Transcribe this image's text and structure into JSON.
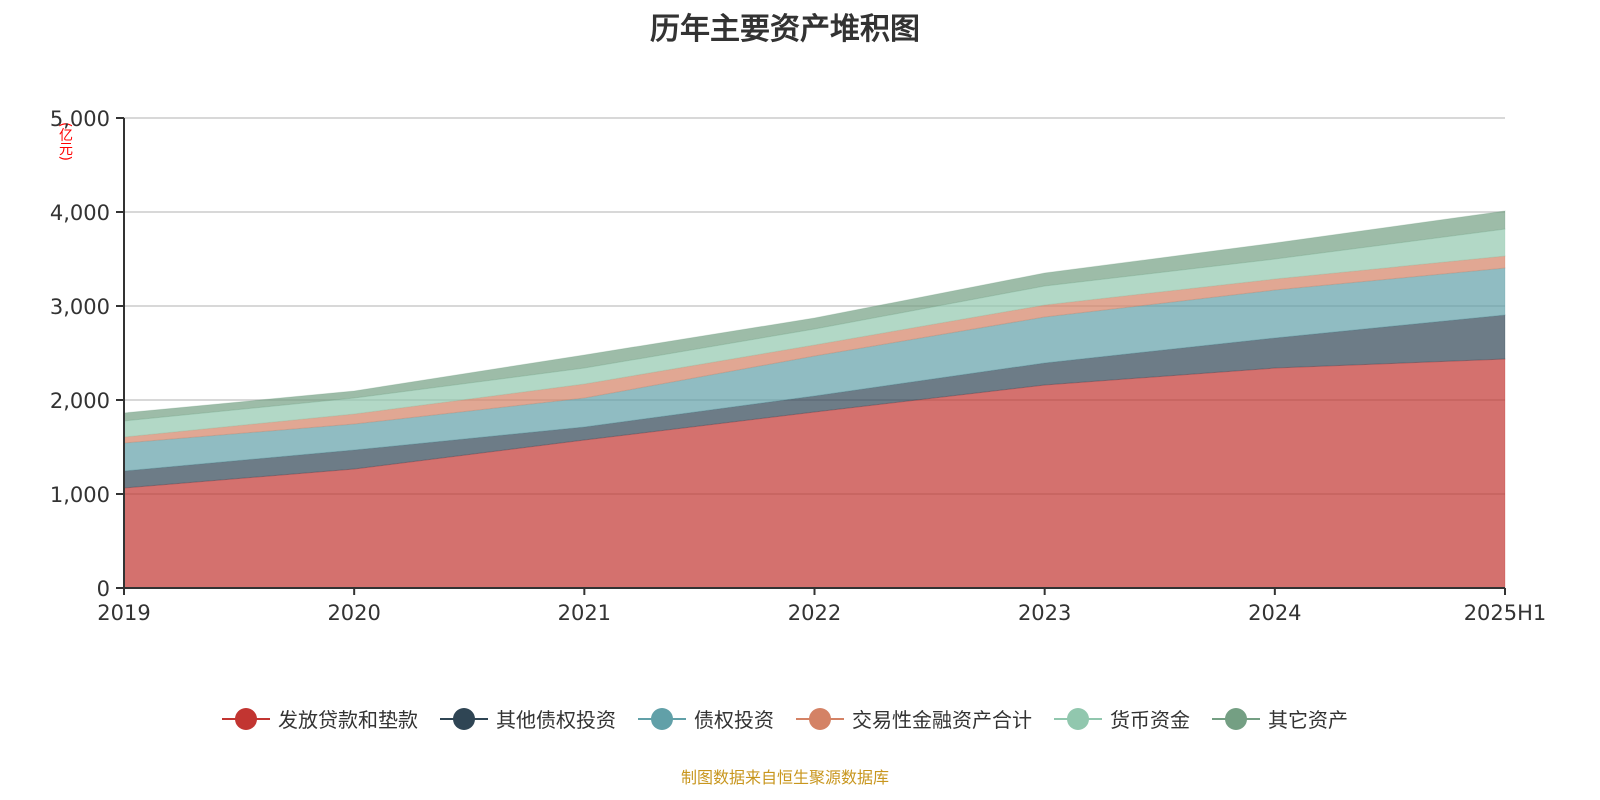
{
  "chart_data": {
    "type": "area",
    "stacked": true,
    "title": "历年主要资产堆积图",
    "ylabel": "(亿元)",
    "categories": [
      "2019",
      "2020",
      "2021",
      "2022",
      "2023",
      "2024",
      "2025H1"
    ],
    "ylim": [
      0,
      5000
    ],
    "yticks": [
      "0",
      "1,000",
      "2,000",
      "3,000",
      "4,000",
      "5,000"
    ],
    "yticks_values": [
      0,
      1000,
      2000,
      3000,
      4000,
      5000
    ],
    "grid": true,
    "legend_position": "bottom",
    "series": [
      {
        "name": "发放贷款和垫款",
        "color": "#c23531",
        "values": [
          1064,
          1266,
          1574,
          1872,
          2160,
          2340,
          2436
        ]
      },
      {
        "name": "其他债权投资",
        "color": "#2f4554",
        "values": [
          181,
          202,
          139,
          171,
          234,
          320,
          468
        ]
      },
      {
        "name": "债权投资",
        "color": "#61a0a8",
        "values": [
          298,
          277,
          308,
          425,
          489,
          510,
          500
        ]
      },
      {
        "name": "交易性金融资产合计",
        "color": "#d48265",
        "values": [
          63,
          106,
          149,
          117,
          128,
          117,
          128
        ]
      },
      {
        "name": "货币资金",
        "color": "#91c7ae",
        "values": [
          171,
          170,
          170,
          170,
          202,
          213,
          287
        ]
      },
      {
        "name": "其它资产",
        "color": "#749f83",
        "values": [
          85,
          75,
          139,
          117,
          138,
          170,
          192
        ]
      }
    ]
  },
  "source": "制图数据来自恒生聚源数据库"
}
